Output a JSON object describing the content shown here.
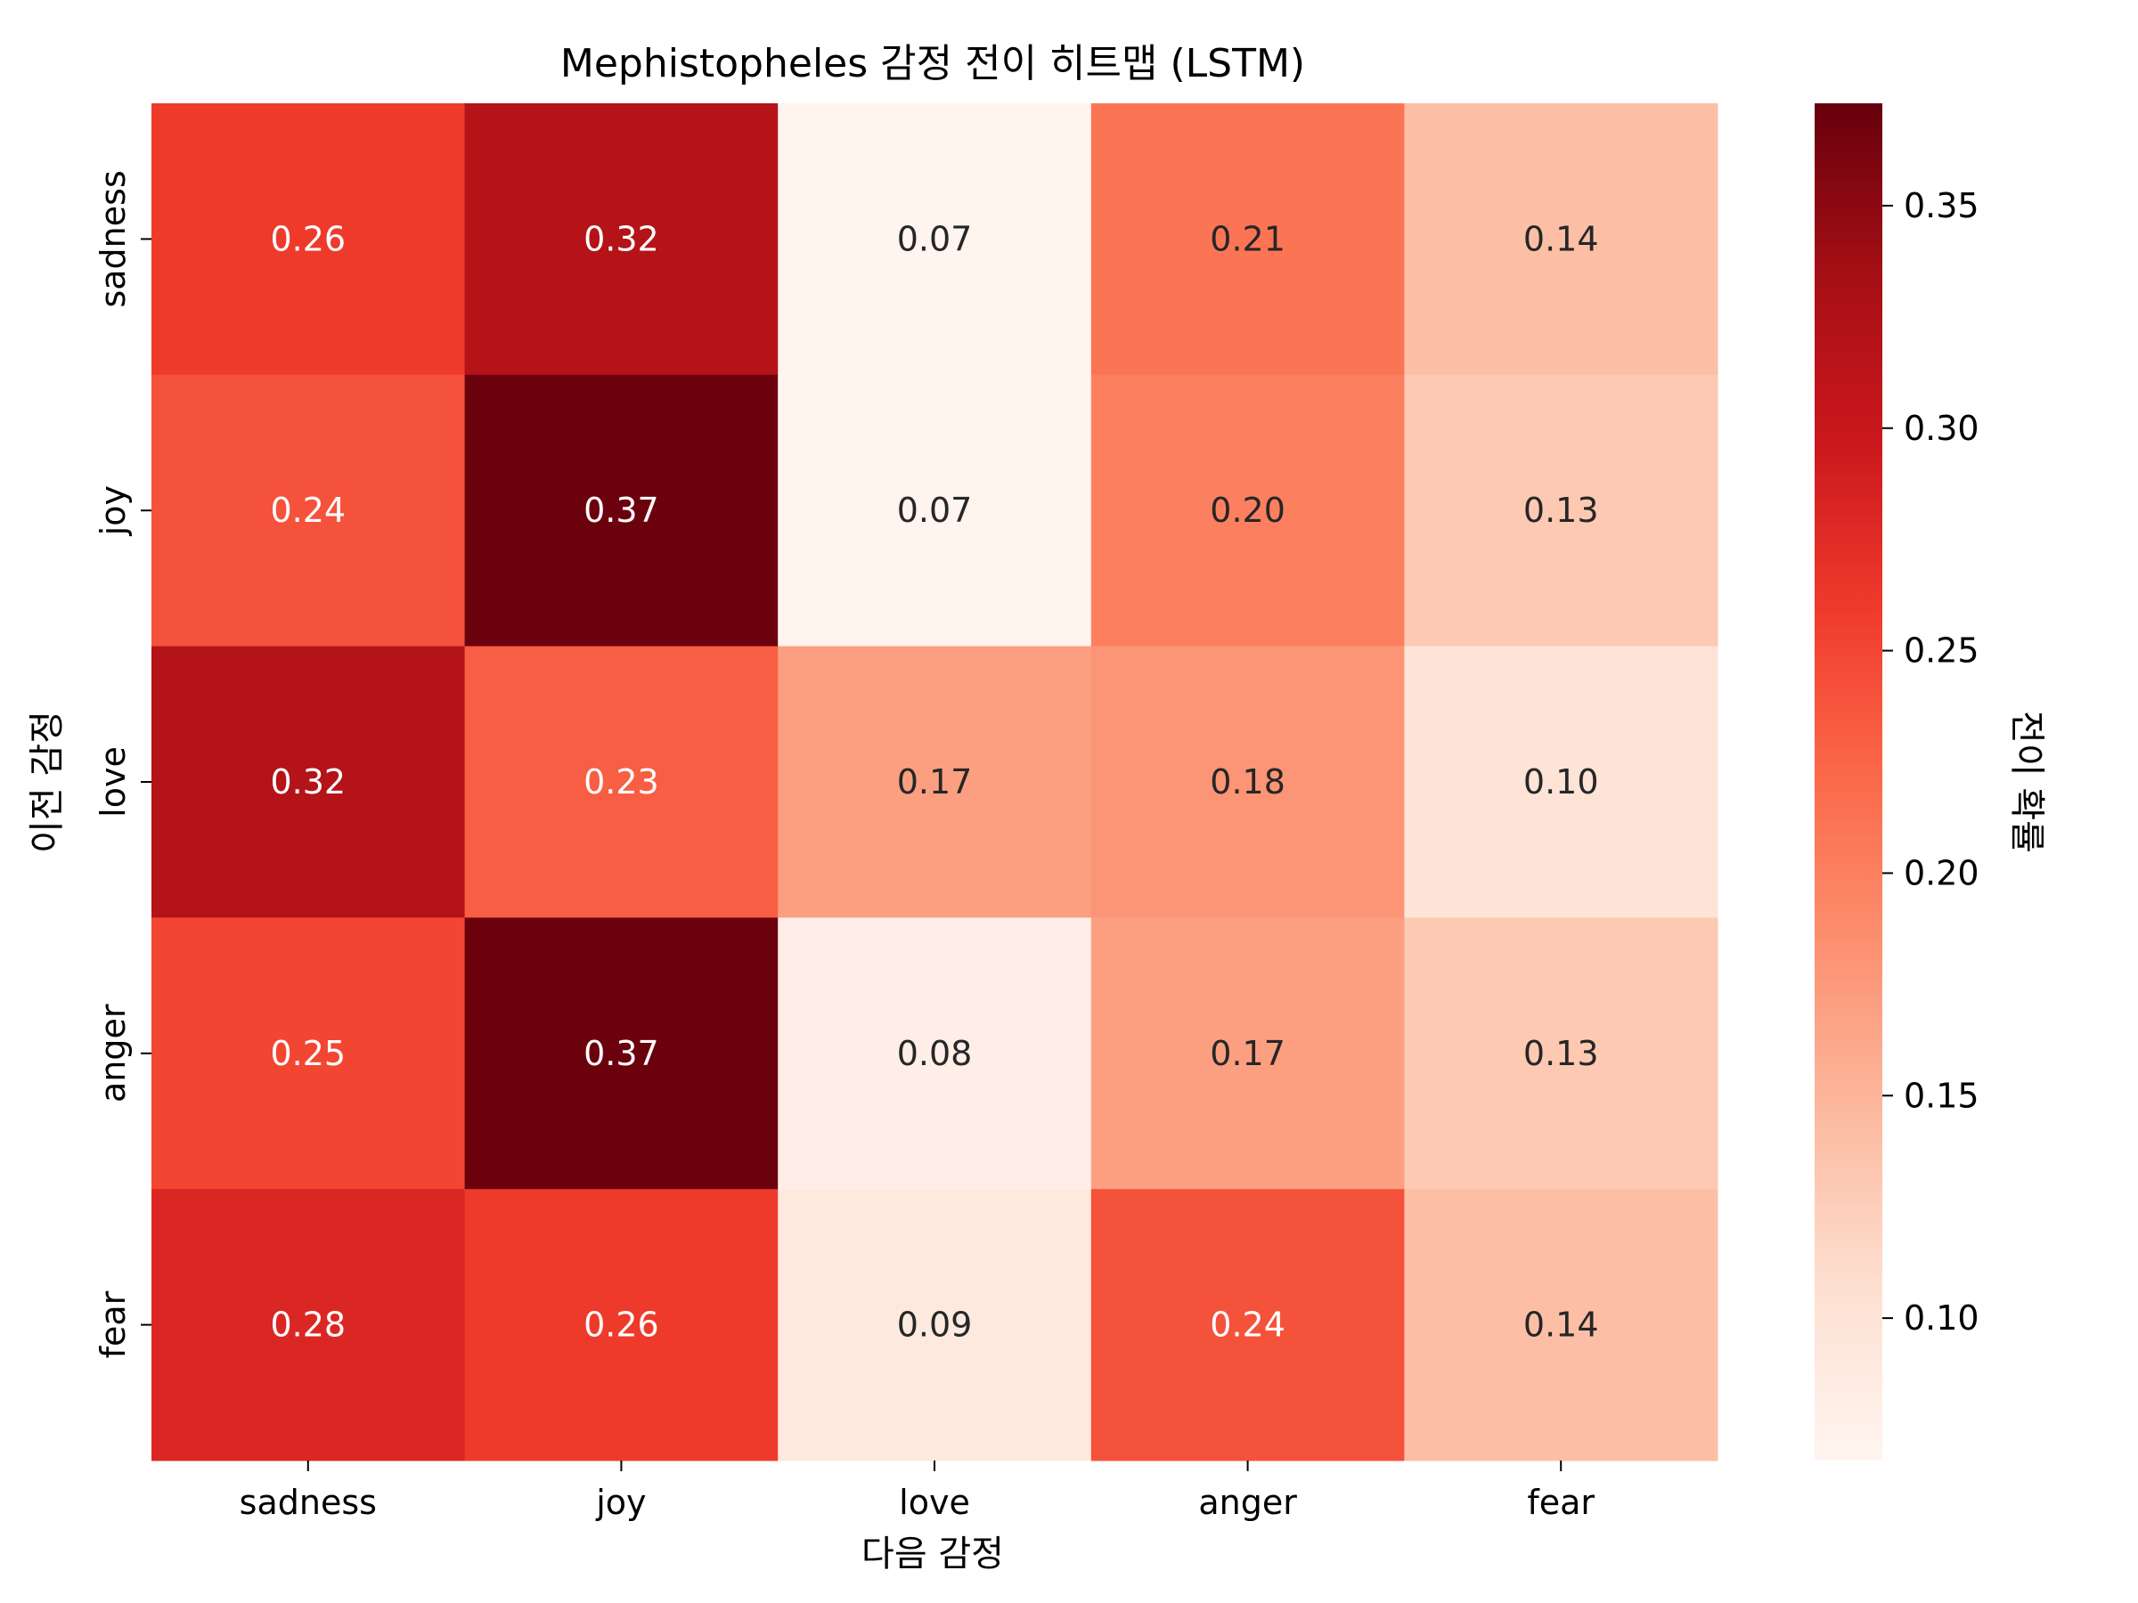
{
  "chart_data": {
    "type": "heatmap",
    "title": "Mephistopheles 감정 전이 히트맵 (LSTM)",
    "xlabel": "다음 감정",
    "ylabel": "이전 감정",
    "x_categories": [
      "sadness",
      "joy",
      "love",
      "anger",
      "fear"
    ],
    "y_categories": [
      "sadness",
      "joy",
      "love",
      "anger",
      "fear"
    ],
    "values": [
      [
        0.26,
        0.32,
        0.07,
        0.21,
        0.14
      ],
      [
        0.24,
        0.37,
        0.07,
        0.2,
        0.13
      ],
      [
        0.32,
        0.23,
        0.17,
        0.18,
        0.1
      ],
      [
        0.25,
        0.37,
        0.08,
        0.17,
        0.13
      ],
      [
        0.28,
        0.26,
        0.09,
        0.24,
        0.14
      ]
    ],
    "value_labels": [
      [
        "0.26",
        "0.32",
        "0.07",
        "0.21",
        "0.14"
      ],
      [
        "0.24",
        "0.37",
        "0.07",
        "0.20",
        "0.13"
      ],
      [
        "0.32",
        "0.23",
        "0.17",
        "0.18",
        "0.10"
      ],
      [
        "0.25",
        "0.37",
        "0.08",
        "0.17",
        "0.13"
      ],
      [
        "0.28",
        "0.26",
        "0.09",
        "0.24",
        "0.14"
      ]
    ],
    "colormap": "Reds",
    "colorbar": {
      "label": "전이 확률",
      "range": [
        0.068,
        0.373
      ],
      "ticks": [
        0.1,
        0.15,
        0.2,
        0.25,
        0.3,
        0.35
      ],
      "tick_labels": [
        "0.10",
        "0.15",
        "0.20",
        "0.25",
        "0.30",
        "0.35"
      ]
    },
    "grid": false
  }
}
